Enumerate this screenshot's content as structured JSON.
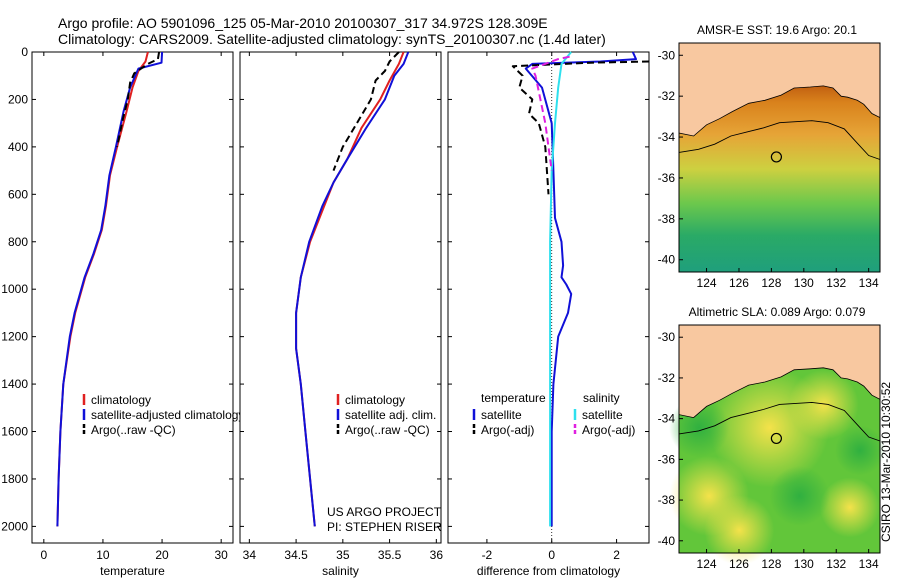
{
  "header": {
    "line1": "Argo profile: AO 5901096_125 05-Mar-2010 20100307_317 34.972S 128.309E",
    "line2": "Climatology: CARS2009. Satellite-adjusted climatology: synTS_20100307.nc (1.4d later)"
  },
  "side_stamp": "CSIRO 13-Mar-2010 10:30:52",
  "colors": {
    "climatology": "#e02020",
    "satellite": "#1010d8",
    "argo": "#000000",
    "temp_argo_adj": "#000000",
    "sal_satellite": "#2ee0ee",
    "sal_argo_adj": "#e020e0",
    "land": "#f8c8a0",
    "frame": "#000000"
  },
  "chart_data": [
    {
      "type": "line",
      "name": "temperature-profile",
      "xlabel": "temperature",
      "ylabel": "",
      "xlim": [
        -2,
        32
      ],
      "ylim": [
        2070,
        0
      ],
      "xticks": [
        0,
        10,
        20,
        30
      ],
      "yticks": [
        0,
        200,
        400,
        600,
        800,
        1000,
        1200,
        1400,
        1600,
        1800,
        2000
      ],
      "legend": [
        "climatology",
        "satellite-adjusted climatology",
        "Argo(..raw -QC)"
      ],
      "series": [
        {
          "name": "climatology",
          "style": "solid",
          "color_key": "climatology",
          "x": [
            17.6,
            17.2,
            16.0,
            15.0,
            14.0,
            12.4,
            11.2,
            10.5,
            9.8,
            8.5,
            7.0,
            5.3,
            4.5,
            3.3,
            2.8,
            2.5,
            2.3
          ],
          "y": [
            0,
            40,
            80,
            150,
            250,
            400,
            520,
            650,
            750,
            850,
            950,
            1100,
            1200,
            1400,
            1600,
            1800,
            2000
          ]
        },
        {
          "name": "satellite-adjusted climatology",
          "style": "solid",
          "color_key": "satellite",
          "x": [
            20.0,
            19.9,
            16.0,
            14.6,
            13.5,
            12.2,
            11.1,
            10.4,
            9.7,
            8.4,
            6.9,
            5.2,
            4.4,
            3.3,
            2.8,
            2.5,
            2.3
          ],
          "y": [
            0,
            45,
            70,
            150,
            250,
            400,
            520,
            650,
            750,
            850,
            950,
            1100,
            1200,
            1400,
            1600,
            1800,
            2000
          ]
        },
        {
          "name": "Argo(..raw -QC)",
          "style": "dashed",
          "color_key": "argo",
          "x": [
            19.5,
            19.3,
            17.6,
            15.3,
            14.6,
            14.2,
            13.4,
            12.4
          ],
          "y": [
            0,
            30,
            50,
            90,
            130,
            200,
            280,
            400
          ]
        }
      ]
    },
    {
      "type": "line",
      "name": "salinity-profile",
      "xlabel": "salinity",
      "xlim": [
        33.9,
        36.05
      ],
      "ylim": [
        2070,
        0
      ],
      "xticks": [
        34,
        34.5,
        35,
        35.5,
        36
      ],
      "legend": [
        "climatology",
        "satellite adj. clim.",
        "Argo(..raw -QC)"
      ],
      "annotation": [
        "US ARGO PROJECT",
        "PI: STEPHEN RISER"
      ],
      "series": [
        {
          "name": "climatology",
          "style": "solid",
          "color_key": "climatology",
          "x": [
            35.65,
            35.6,
            35.5,
            35.4,
            35.2,
            35.05,
            34.9,
            34.8,
            34.65,
            34.55,
            34.5,
            34.5,
            34.55,
            34.6,
            34.65,
            34.7
          ],
          "y": [
            0,
            50,
            120,
            200,
            320,
            450,
            550,
            650,
            800,
            950,
            1100,
            1250,
            1400,
            1600,
            1800,
            2000
          ]
        },
        {
          "name": "satellite adj. clim.",
          "style": "solid",
          "color_key": "satellite",
          "x": [
            35.7,
            35.65,
            35.55,
            35.45,
            35.25,
            35.05,
            34.9,
            34.78,
            34.64,
            34.55,
            34.5,
            34.5,
            34.55,
            34.6,
            34.65,
            34.7
          ],
          "y": [
            0,
            50,
            100,
            200,
            320,
            450,
            550,
            650,
            800,
            950,
            1100,
            1250,
            1400,
            1600,
            1800,
            2000
          ]
        },
        {
          "name": "Argo(..raw -QC)",
          "style": "dashed",
          "color_key": "argo",
          "x": [
            35.6,
            35.5,
            35.45,
            35.35,
            35.3,
            35.15,
            35.0,
            34.9
          ],
          "y": [
            0,
            40,
            80,
            120,
            200,
            300,
            400,
            500
          ]
        }
      ]
    },
    {
      "type": "line",
      "name": "difference-profile",
      "xlabel": "difference from climatology",
      "xlim": [
        -3.2,
        3.0
      ],
      "ylim": [
        2070,
        0
      ],
      "xticks": [
        -2,
        0,
        2
      ],
      "legend": {
        "temperature": [
          "temperature",
          "satellite",
          "Argo(-adj)"
        ],
        "salinity": [
          "salinity",
          "satellite",
          "Argo(-adj)"
        ]
      },
      "series": [
        {
          "name": "temperature satellite",
          "style": "solid",
          "color_key": "satellite",
          "x": [
            2.5,
            2.6,
            1.5,
            -0.6,
            -0.8,
            -0.3,
            0.0,
            0.05,
            0.1,
            0.3,
            0.35,
            0.3,
            0.45,
            0.6,
            0.5,
            0.2,
            0.05,
            0.0,
            0.0
          ],
          "y": [
            0,
            30,
            40,
            50,
            70,
            150,
            300,
            500,
            700,
            800,
            900,
            950,
            980,
            1020,
            1100,
            1200,
            1400,
            1600,
            2000
          ]
        },
        {
          "name": "temperature Argo(-adj)",
          "style": "dashed",
          "color_key": "temp_argo_adj",
          "x": [
            3.0,
            1.2,
            -1.2,
            -0.9,
            -1.0,
            -0.6,
            -0.7,
            -0.4,
            -0.2,
            -0.1
          ],
          "y": [
            40,
            45,
            60,
            100,
            150,
            200,
            260,
            300,
            400,
            600
          ]
        },
        {
          "name": "salinity satellite",
          "style": "solid",
          "color_key": "sal_satellite",
          "x": [
            0.6,
            0.3,
            0.2,
            0.1,
            0.0,
            -0.05,
            -0.05,
            -0.05,
            -0.05
          ],
          "y": [
            0,
            50,
            150,
            300,
            500,
            800,
            1200,
            1600,
            2000
          ]
        },
        {
          "name": "salinity Argo(-adj)",
          "style": "dashed",
          "color_key": "sal_argo_adj",
          "x": [
            0.55,
            0.2,
            -0.6,
            -0.5,
            -0.35,
            -0.2,
            -0.1,
            0.0
          ],
          "y": [
            20,
            30,
            70,
            100,
            200,
            300,
            400,
            500
          ]
        }
      ]
    },
    {
      "type": "heatmap",
      "name": "sst-map",
      "title": "AMSR-E SST: 19.6 Argo: 20.1",
      "xlim": [
        122.3,
        134.7
      ],
      "ylim": [
        -40.6,
        -29.4
      ],
      "xticks": [
        124,
        126,
        128,
        130,
        132,
        134
      ],
      "yticks": [
        -30,
        -32,
        -34,
        -36,
        -38,
        -40
      ],
      "argo_position": {
        "lon": 128.309,
        "lat": -34.972
      }
    },
    {
      "type": "heatmap",
      "name": "sla-map",
      "title": "Altimetric SLA: 0.089 Argo: 0.079",
      "xlim": [
        122.3,
        134.7
      ],
      "ylim": [
        -40.6,
        -29.4
      ],
      "xticks": [
        124,
        126,
        128,
        130,
        132,
        134
      ],
      "yticks": [
        -30,
        -32,
        -34,
        -36,
        -38,
        -40
      ],
      "argo_position": {
        "lon": 128.309,
        "lat": -34.972
      }
    }
  ]
}
